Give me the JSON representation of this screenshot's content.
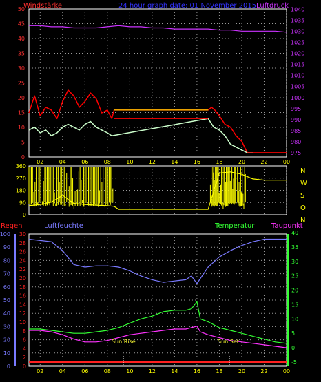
{
  "header": {
    "left_label": "Windstärke",
    "center_label": "24 hour graph date: 01 November 2015",
    "right_label": "Luftdruck"
  },
  "colors": {
    "wind_axis": "#ff3030",
    "pressure_axis": "#cc33ff",
    "frame": "#ffffff",
    "time_axis": "#ffff00",
    "gust": "#ff0000",
    "wind_avg": "#ccffcc",
    "direction": "#ffff00",
    "rain": "#ff2020",
    "humidity": "#7a7aff",
    "temperature": "#33ff33",
    "dewpoint": "#ff33ff",
    "title_blue": "#3333ff"
  },
  "time_axis": {
    "ticks": [
      "02",
      "04",
      "06",
      "08",
      "10",
      "12",
      "14",
      "16",
      "18",
      "20",
      "22",
      "00"
    ]
  },
  "panel_wind": {
    "left_ticks": [
      "0",
      "5",
      "10",
      "15",
      "20",
      "25",
      "30",
      "35",
      "40",
      "45",
      "50"
    ],
    "right_ticks": [
      "975",
      "980",
      "985",
      "990",
      "995",
      "1000",
      "1005",
      "1010",
      "1015",
      "1020",
      "1025",
      "1030",
      "1035",
      "1040"
    ]
  },
  "panel_dir": {
    "left_ticks": [
      "0",
      "90",
      "180",
      "270",
      "360"
    ],
    "right_letters": [
      "N",
      "W",
      "S",
      "O",
      "N"
    ]
  },
  "panel_bottom": {
    "labels": {
      "rain": "Regen",
      "humidity": "Luftfeuchte",
      "temperature": "Temperatur",
      "dewpoint": "Taupunkt"
    },
    "humidity_ticks": [
      "0",
      "10",
      "20",
      "30",
      "40",
      "50",
      "60",
      "70",
      "80",
      "90",
      "100"
    ],
    "rain_ticks": [
      "0",
      "2",
      "4",
      "6",
      "8",
      "10",
      "12",
      "14",
      "16",
      "18",
      "20",
      "22",
      "24",
      "26",
      "28",
      "30"
    ],
    "temp_ticks": [
      "-5",
      "0",
      "5",
      "10",
      "15",
      "20",
      "25",
      "30",
      "35",
      "40"
    ],
    "sunrise_label": "Sun Rise",
    "sunset_label": "Sun Set"
  },
  "chart_data": [
    {
      "type": "line",
      "x_unit": "hour",
      "xlim": [
        1,
        24
      ],
      "ylim_left": [
        0,
        50
      ],
      "ylim_right": [
        975,
        1040
      ],
      "series": [
        {
          "name": "Luftdruck",
          "axis": "right",
          "x": [
            1,
            2,
            3,
            4,
            5,
            6,
            7,
            8,
            9,
            10,
            11,
            12,
            13,
            14,
            15,
            16,
            17,
            18,
            19,
            20,
            21,
            22,
            23,
            24
          ],
          "values": [
            1033,
            1033,
            1032.5,
            1032.5,
            1032,
            1032,
            1032,
            1032.5,
            1033,
            1032.5,
            1032.5,
            1032,
            1032,
            1031.5,
            1031.5,
            1031.5,
            1031.5,
            1031,
            1031,
            1030.5,
            1030.5,
            1030.5,
            1030.5,
            1030
          ]
        },
        {
          "name": "Windstärke (Böen)",
          "axis": "left",
          "x": [
            1,
            1.5,
            2,
            2.5,
            3,
            3.5,
            4,
            4.5,
            5,
            5.5,
            6,
            6.5,
            7,
            7.5,
            8,
            8.4,
            8.6,
            17,
            17.3,
            17.6,
            18,
            18.5,
            19,
            19.5,
            20,
            20.5,
            21,
            22,
            23,
            24
          ],
          "values": [
            14,
            20,
            13,
            16,
            15,
            12,
            18,
            22,
            20,
            16,
            18,
            21,
            19,
            14,
            15,
            12,
            15,
            15,
            16,
            15,
            13,
            10,
            9,
            6,
            4,
            0,
            0,
            0,
            0,
            0
          ]
        },
        {
          "name": "Windstärke (Mittel)",
          "axis": "left",
          "x": [
            1,
            1.5,
            2,
            2.5,
            3,
            3.5,
            4,
            4.5,
            5,
            5.5,
            6,
            6.5,
            7,
            7.5,
            8,
            8.4,
            17,
            17.5,
            18,
            18.5,
            19,
            19.5,
            20,
            20.5,
            21
          ],
          "values": [
            8,
            9,
            7,
            8,
            6,
            7,
            9,
            10,
            9,
            8,
            10,
            11,
            9,
            8,
            7,
            6,
            12,
            9,
            8,
            6,
            3,
            2,
            1,
            0,
            0
          ]
        },
        {
          "name": "Windrichtung",
          "axis": "dir",
          "x": [
            1,
            2,
            3,
            4,
            5,
            6,
            7,
            8,
            8.6,
            9,
            17,
            18,
            19,
            20,
            20.5,
            21,
            22,
            23,
            24
          ],
          "values": [
            30,
            40,
            60,
            120,
            50,
            40,
            35,
            30,
            25,
            0,
            0,
            310,
            320,
            300,
            280,
            260,
            250,
            250,
            250
          ]
        },
        {
          "name": "Luftfeuchte",
          "axis": "humidity",
          "x": [
            1,
            2,
            3,
            4,
            5,
            6,
            7,
            8,
            9,
            10,
            11,
            12,
            13,
            14,
            15,
            15.5,
            16,
            17,
            18,
            19,
            20,
            21,
            22,
            23,
            24
          ],
          "values": [
            97,
            96,
            95,
            88,
            77,
            75,
            76,
            76,
            75,
            72,
            68,
            65,
            63,
            64,
            65,
            68,
            62,
            75,
            83,
            88,
            92,
            95,
            97,
            97,
            97
          ]
        },
        {
          "name": "Temperatur",
          "axis": "temp",
          "x": [
            1,
            2,
            3,
            4,
            5,
            6,
            7,
            8,
            9,
            10,
            11,
            12,
            13,
            14,
            15,
            15.5,
            16,
            16.3,
            17,
            18,
            19,
            20,
            21,
            22,
            23,
            24
          ],
          "values": [
            6.5,
            6.5,
            6,
            5.5,
            5,
            5,
            5.5,
            6,
            7,
            8.5,
            10,
            11,
            12.5,
            13,
            13,
            13.5,
            16,
            10,
            9,
            7,
            6,
            5,
            4,
            3,
            2,
            1.5
          ]
        },
        {
          "name": "Taupunkt",
          "axis": "temp",
          "x": [
            1,
            2,
            3,
            4,
            5,
            6,
            7,
            8,
            9,
            10,
            11,
            12,
            13,
            14,
            15,
            15.5,
            16,
            16.3,
            17,
            18,
            19,
            20,
            21,
            22,
            23,
            24
          ],
          "values": [
            6,
            6,
            5.5,
            4.5,
            3,
            2,
            2,
            2.5,
            3.5,
            4.5,
            5,
            5.5,
            6,
            6.5,
            6.5,
            7,
            7.5,
            5.5,
            4.5,
            3.5,
            2.5,
            2,
            1.5,
            1,
            0.5,
            0
          ]
        },
        {
          "name": "Regen",
          "axis": "rain",
          "x": [
            1,
            24
          ],
          "values": [
            0,
            0
          ]
        }
      ]
    }
  ]
}
